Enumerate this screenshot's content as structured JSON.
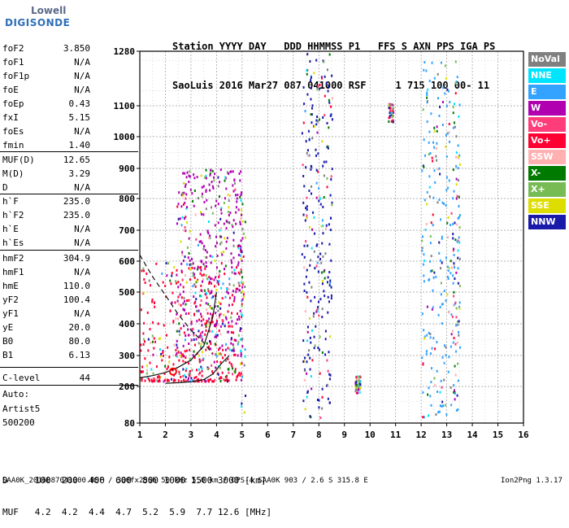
{
  "logo": {
    "line1": "Lowell",
    "line2": "DIGISONDE"
  },
  "header": {
    "line1": "Station YYYY DAY   DDD HHMMSS P1   FFS S AXN PPS IGA PS",
    "line2": "SaoLuis 2016 Mar27 087 041000 RSF     1 715 100 00- 11"
  },
  "params": [
    {
      "label": "foF2",
      "value": "3.850"
    },
    {
      "label": "foF1",
      "value": "N/A"
    },
    {
      "label": "foF1p",
      "value": "N/A"
    },
    {
      "label": "foE",
      "value": "N/A"
    },
    {
      "label": "foEp",
      "value": "0.43"
    },
    {
      "label": "fxI",
      "value": "5.15"
    },
    {
      "label": "foEs",
      "value": "N/A"
    },
    {
      "label": "fmin",
      "value": "1.40"
    },
    {
      "label": "MUF(D)",
      "value": "12.65"
    },
    {
      "label": "M(D)",
      "value": "3.29"
    },
    {
      "label": "D",
      "value": "N/A"
    },
    {
      "label": "h`F",
      "value": "235.0"
    },
    {
      "label": "h`F2",
      "value": "235.0"
    },
    {
      "label": "h`E",
      "value": "N/A"
    },
    {
      "label": "h`Es",
      "value": "N/A"
    },
    {
      "label": "hmF2",
      "value": "304.9"
    },
    {
      "label": "hmF1",
      "value": "N/A"
    },
    {
      "label": "hmE",
      "value": "110.0"
    },
    {
      "label": "yF2",
      "value": "100.4"
    },
    {
      "label": "yF1",
      "value": "N/A"
    },
    {
      "label": "yE",
      "value": "20.0"
    },
    {
      "label": "B0",
      "value": "80.0"
    },
    {
      "label": "B1",
      "value": "6.13"
    },
    {
      "label": "C-level",
      "value": "44"
    }
  ],
  "auto": {
    "line1": "Auto:",
    "line2": "Artist5",
    "line3": "500200"
  },
  "legend": [
    {
      "label": "NoVal",
      "color": "#808080"
    },
    {
      "label": "NNE",
      "color": "#00e5ff"
    },
    {
      "label": "E",
      "color": "#33a3ff"
    },
    {
      "label": "W",
      "color": "#b000b0"
    },
    {
      "label": "Vo-",
      "color": "#ff3d7a"
    },
    {
      "label": "Vo+",
      "color": "#ff0033"
    },
    {
      "label": "SSW",
      "color": "#ffb0b0"
    },
    {
      "label": "X-",
      "color": "#007a00"
    },
    {
      "label": "X+",
      "color": "#77bb55"
    },
    {
      "label": "SSE",
      "color": "#dddd00"
    },
    {
      "label": "NNW",
      "color": "#1a1aaa"
    }
  ],
  "dmuf": {
    "line1": "D     100  200  400  600  800 1000 1500 3000 [km]",
    "line2": "MUF   4.2  4.2  4.4  4.7  5.2  5.9  7.7 12.6 [MHz]"
  },
  "footer": {
    "left": "SAA0K_2016087041000.RSF / 300fx256h 50 kHz 5.0 km / DPS-4 SAA0K 903 / 2.6 S 315.8 E",
    "right": "Ion2Png 1.3.17"
  },
  "chart_data": {
    "type": "scatter",
    "xlabel": "",
    "ylabel": "",
    "xlim": [
      1,
      16
    ],
    "ylim": [
      80,
      1280
    ],
    "x_ticks": [
      "1",
      "2",
      "3",
      "4",
      "5",
      "6",
      "7",
      "8",
      "9",
      "10",
      "11",
      "12",
      "13",
      "14",
      "15",
      "16"
    ],
    "y_ticks": [
      "80",
      "200",
      "300",
      "400",
      "500",
      "600",
      "700",
      "800",
      "900",
      "1000",
      "1100",
      "1280"
    ],
    "grid": true,
    "curves": [
      {
        "name": "",
        "style": "solid",
        "x": [
          1.0,
          1.5,
          2.0,
          2.5,
          3.0,
          3.5,
          3.85,
          4.0
        ],
        "y": [
          228,
          235,
          245,
          262,
          285,
          330,
          420,
          500
        ]
      },
      {
        "name": "",
        "style": "solid",
        "x": [
          2.0,
          2.5,
          3.0,
          3.5,
          3.85,
          4.2,
          4.5
        ],
        "y": [
          210,
          212,
          215,
          222,
          240,
          275,
          300
        ]
      },
      {
        "name": "",
        "style": "dashed",
        "x": [
          1.0,
          1.5,
          2.0,
          2.5,
          3.0,
          3.5,
          3.85
        ],
        "y": [
          620,
          550,
          490,
          430,
          380,
          340,
          305
        ]
      }
    ],
    "trace_clusters": [
      {
        "x_range": [
          1.0,
          5.0
        ],
        "y_range": [
          220,
          600
        ],
        "color": "#ff0033"
      },
      {
        "x_range": [
          2.4,
          5.0
        ],
        "y_range": [
          300,
          900
        ],
        "color": "#b000b0"
      },
      {
        "x_range": [
          7.3,
          8.5
        ],
        "y_range": [
          100,
          1280
        ],
        "color": "#1a1aaa"
      },
      {
        "x_range": [
          12.0,
          13.5
        ],
        "y_range": [
          100,
          1250
        ],
        "color": "#33a3ff"
      }
    ]
  }
}
